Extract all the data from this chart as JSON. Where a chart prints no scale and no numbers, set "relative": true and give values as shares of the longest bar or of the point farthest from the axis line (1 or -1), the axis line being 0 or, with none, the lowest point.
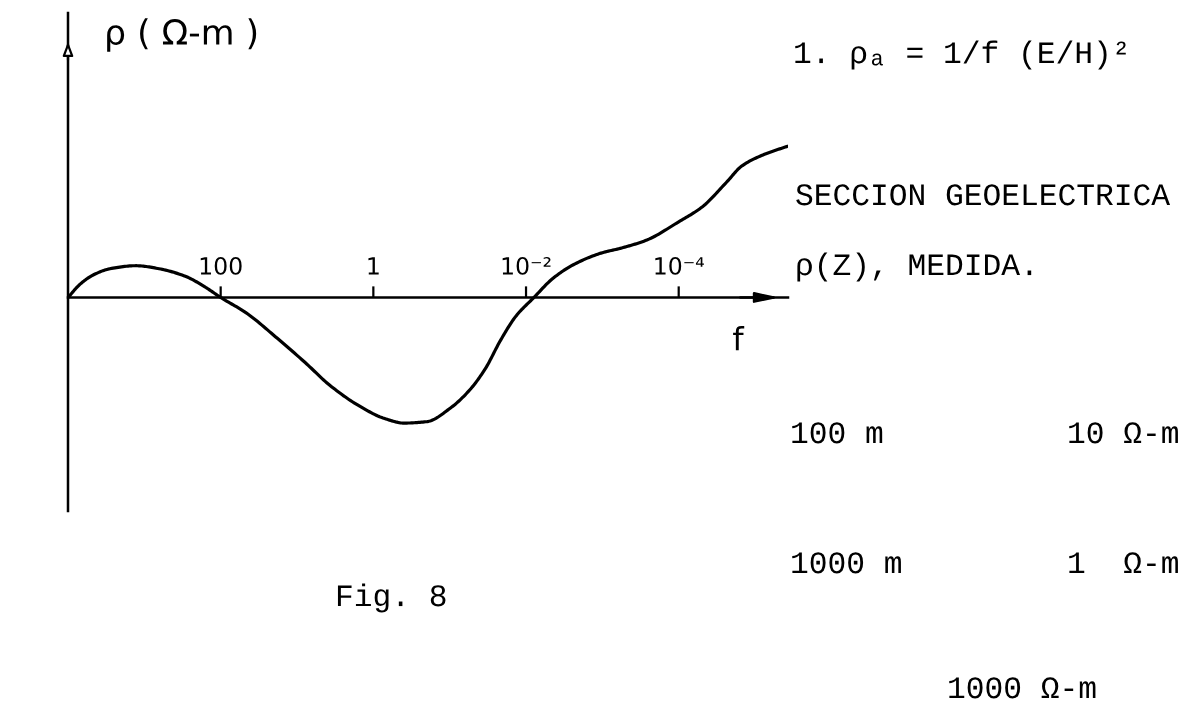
{
  "chart_data": {
    "type": "line",
    "relative": true,
    "log": "x",
    "xlabel": "f",
    "ylabel": "ρ ( Ω-m )",
    "xlim": [
      10000,
      3.7e-06
    ],
    "xticks": [
      100,
      1,
      {
        "value": 0.01,
        "label": "10⁻²"
      },
      {
        "value": 0.0001,
        "label": "10⁻⁴"
      }
    ],
    "x": [
      10000,
      6870,
      4620,
      2820,
      1280,
      641,
      290,
      161,
      100,
      46.8,
      18.1,
      7.82,
      3.72,
      1.61,
      0.711,
      0.396,
      0.197,
      0.0975,
      0.0544,
      0.0341,
      0.0214,
      0.0134,
      0.00787,
      0.00459,
      0.00253,
      0.00109,
      0.000533,
      0.000261,
      0.0001,
      4.88e-05,
      2.38e-05,
      1.48e-05,
      7.2e-06,
      3.7e-06
    ],
    "series": [
      {
        "color": "#000000",
        "line_style": "solid",
        "values": [
          0,
          0.09,
          0.15,
          0.19,
          0.21,
          0.19,
          0.14,
          0.07,
          0,
          -0.1,
          -0.27,
          -0.43,
          -0.58,
          -0.71,
          -0.8,
          -0.83,
          -0.82,
          -0.73,
          -0.61,
          -0.47,
          -0.28,
          -0.12,
          0,
          0.12,
          0.21,
          0.29,
          0.33,
          0.38,
          0.5,
          0.6,
          0.76,
          0.87,
          0.95,
          1
        ]
      }
    ],
    "annotations": [
      "1. ρₐ = 1/f (E/H)²",
      "SECCION GEOELECTRICA",
      "ρ(Z), MEDIDA.",
      "100 m",
      "10 Ω-m",
      "1000 m",
      "1  Ω-m",
      "1000 Ω-m",
      "Fig. 8"
    ]
  }
}
